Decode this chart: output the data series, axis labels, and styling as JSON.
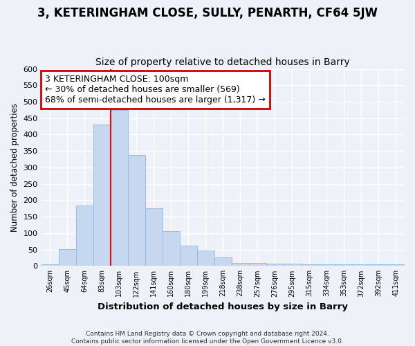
{
  "title": "3, KETERINGHAM CLOSE, SULLY, PENARTH, CF64 5JW",
  "subtitle": "Size of property relative to detached houses in Barry",
  "xlabel": "Distribution of detached houses by size in Barry",
  "ylabel": "Number of detached properties",
  "footer1": "Contains HM Land Registry data © Crown copyright and database right 2024.",
  "footer2": "Contains public sector information licensed under the Open Government Licence v3.0.",
  "categories": [
    "26sqm",
    "45sqm",
    "64sqm",
    "83sqm",
    "103sqm",
    "122sqm",
    "141sqm",
    "160sqm",
    "180sqm",
    "199sqm",
    "218sqm",
    "238sqm",
    "257sqm",
    "276sqm",
    "295sqm",
    "315sqm",
    "334sqm",
    "353sqm",
    "372sqm",
    "392sqm",
    "411sqm"
  ],
  "values": [
    5,
    52,
    185,
    430,
    475,
    338,
    175,
    107,
    62,
    46,
    25,
    10,
    10,
    8,
    7,
    5,
    4,
    4,
    5,
    4,
    4
  ],
  "bar_color": "#c5d8f0",
  "bar_edge_color": "#9bbce0",
  "red_line_index": 4,
  "annotation_line1": "3 KETERINGHAM CLOSE: 100sqm",
  "annotation_line2": "← 30% of detached houses are smaller (569)",
  "annotation_line3": "68% of semi-detached houses are larger (1,317) →",
  "annotation_box_color": "#ffffff",
  "annotation_box_edge_color": "#cc0000",
  "ylim": [
    0,
    600
  ],
  "yticks": [
    0,
    50,
    100,
    150,
    200,
    250,
    300,
    350,
    400,
    450,
    500,
    550,
    600
  ],
  "bg_color": "#eef2f8",
  "grid_color": "#ffffff",
  "title_fontsize": 12,
  "subtitle_fontsize": 10,
  "annotation_fontsize": 9
}
